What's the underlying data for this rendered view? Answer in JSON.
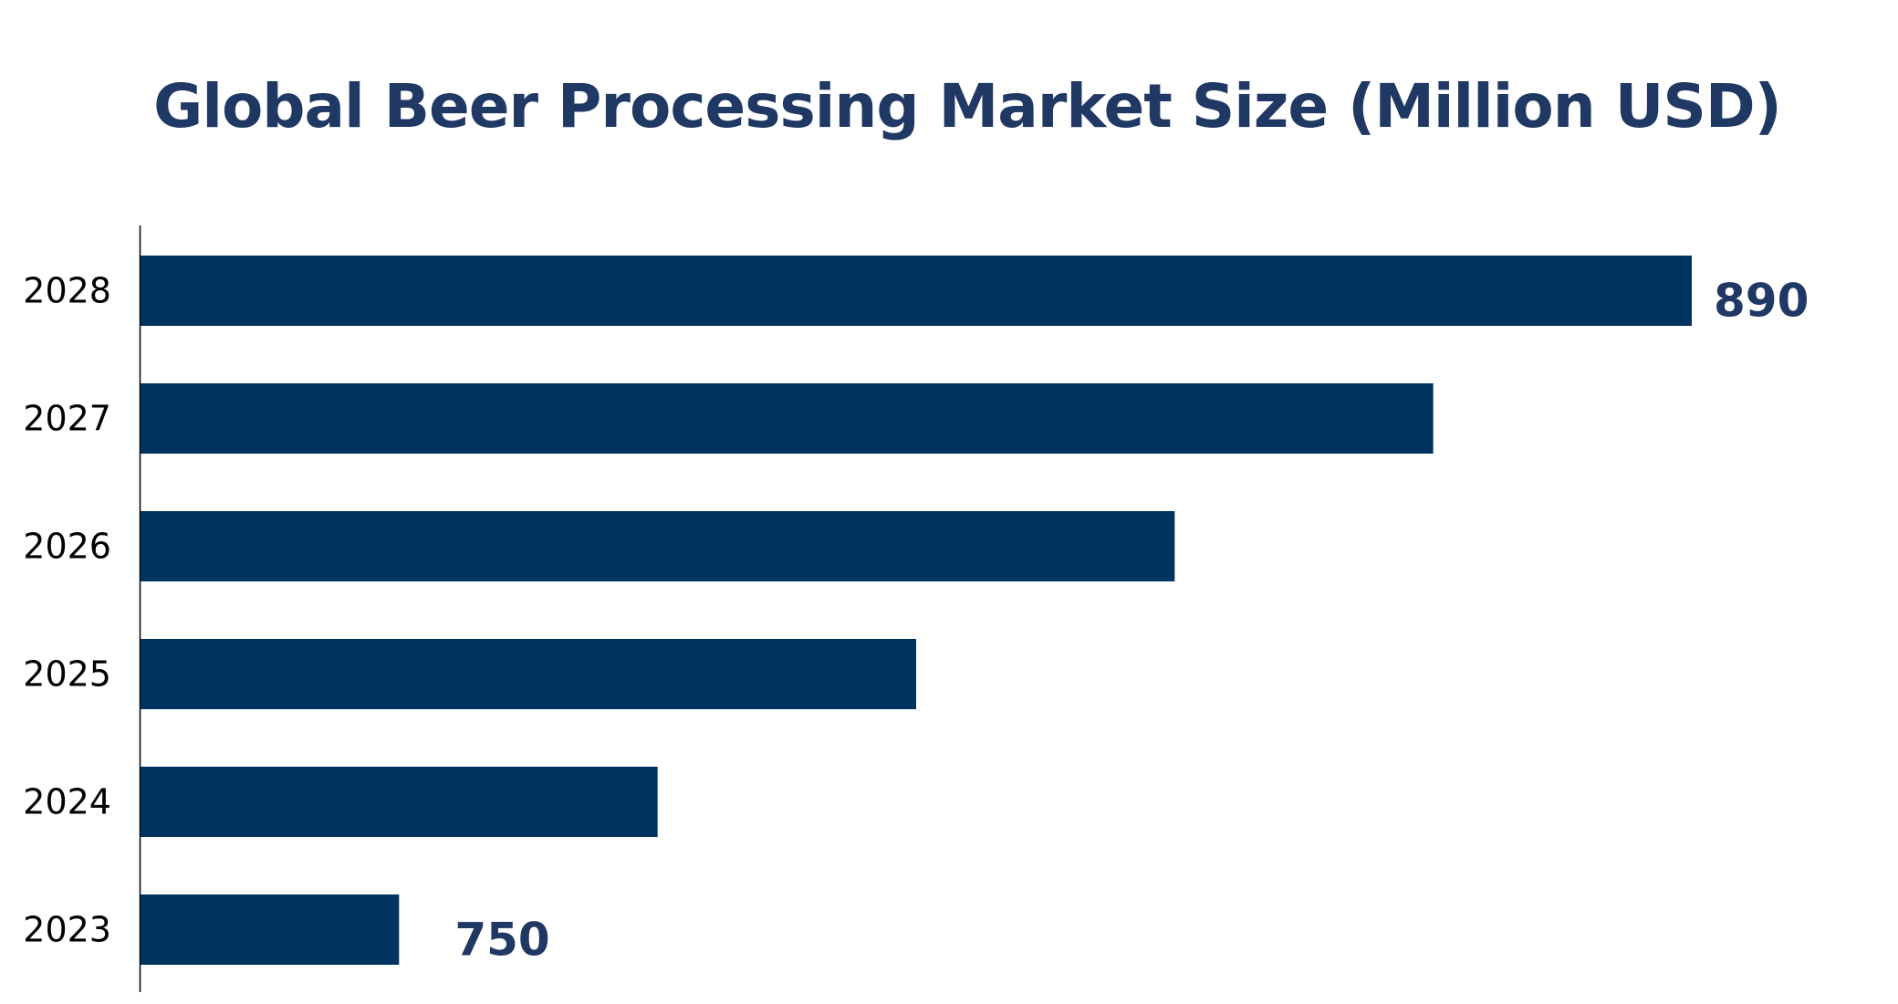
{
  "chart_data": {
    "type": "bar",
    "orientation": "horizontal",
    "title": "Global Beer Processing Market Size (Million USD)",
    "categories": [
      "2028",
      "2027",
      "2026",
      "2025",
      "2024",
      "2023"
    ],
    "values": [
      890,
      862,
      834,
      806,
      778,
      750
    ],
    "data_labels": {
      "2028": "890",
      "2023": "750"
    },
    "xlabel": "",
    "ylabel": "",
    "grid": false,
    "legend": "none",
    "colors": {
      "bar": "#003360",
      "title": "#203864",
      "label": "#203864"
    }
  }
}
